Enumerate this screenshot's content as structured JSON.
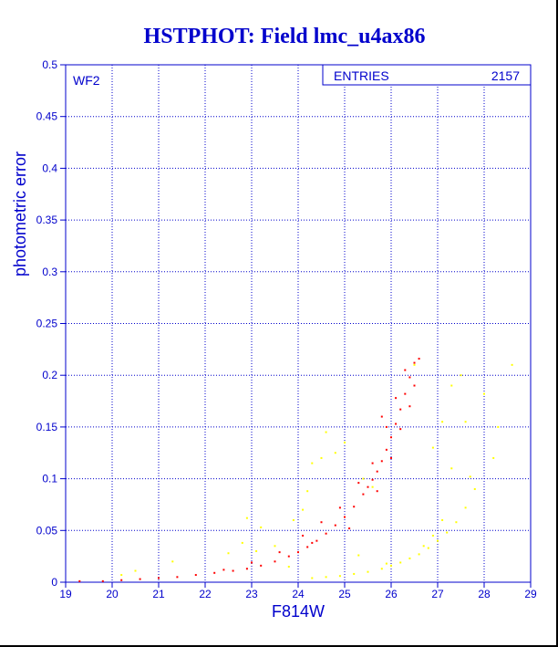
{
  "chart_data": {
    "type": "scatter",
    "title": "HSTPHOT: Field lmc_u4ax86",
    "xlabel": "F814W",
    "ylabel": "photometric error",
    "xlim": [
      19,
      29
    ],
    "ylim": [
      0,
      0.5
    ],
    "x_ticks": [
      "19",
      "20",
      "21",
      "22",
      "23",
      "24",
      "25",
      "26",
      "27",
      "28",
      "29"
    ],
    "y_ticks": [
      "0",
      "0.05",
      "0.1",
      "0.15",
      "0.2",
      "0.25",
      "0.3",
      "0.35",
      "0.4",
      "0.45",
      "0.5"
    ],
    "grid": true,
    "chip_label": "WF2",
    "stats_box": {
      "label": "ENTRIES",
      "value": "2157"
    },
    "series": [
      {
        "color": "#ff0000",
        "points": [
          [
            19.3,
            0.001
          ],
          [
            19.8,
            0.001
          ],
          [
            20.2,
            0.002
          ],
          [
            20.6,
            0.003
          ],
          [
            21.0,
            0.004
          ],
          [
            21.4,
            0.005
          ],
          [
            21.8,
            0.007
          ],
          [
            22.2,
            0.009
          ],
          [
            22.6,
            0.011
          ],
          [
            22.9,
            0.013
          ],
          [
            23.2,
            0.016
          ],
          [
            23.5,
            0.02
          ],
          [
            23.8,
            0.025
          ],
          [
            24.0,
            0.029
          ],
          [
            24.2,
            0.034
          ],
          [
            24.4,
            0.04
          ],
          [
            24.6,
            0.047
          ],
          [
            24.8,
            0.055
          ],
          [
            25.0,
            0.063
          ],
          [
            25.2,
            0.073
          ],
          [
            25.4,
            0.085
          ],
          [
            25.5,
            0.092
          ],
          [
            25.6,
            0.099
          ],
          [
            25.7,
            0.107
          ],
          [
            25.8,
            0.117
          ],
          [
            25.9,
            0.128
          ],
          [
            26.0,
            0.14
          ],
          [
            26.1,
            0.153
          ],
          [
            26.2,
            0.167
          ],
          [
            26.3,
            0.182
          ],
          [
            26.4,
            0.198
          ],
          [
            26.5,
            0.212
          ],
          [
            26.6,
            0.216
          ],
          [
            23.6,
            0.029
          ],
          [
            24.1,
            0.045
          ],
          [
            24.5,
            0.058
          ],
          [
            24.9,
            0.072
          ],
          [
            25.3,
            0.096
          ],
          [
            25.6,
            0.115
          ],
          [
            25.9,
            0.15
          ],
          [
            26.1,
            0.178
          ],
          [
            26.3,
            0.205
          ],
          [
            26.5,
            0.19
          ],
          [
            25.1,
            0.052
          ],
          [
            25.7,
            0.088
          ],
          [
            26.0,
            0.12
          ],
          [
            26.2,
            0.148
          ],
          [
            26.4,
            0.17
          ],
          [
            22.4,
            0.012
          ],
          [
            23.0,
            0.019
          ],
          [
            24.3,
            0.038
          ],
          [
            25.8,
            0.16
          ]
        ]
      },
      {
        "color": "#ffff00",
        "points": [
          [
            24.3,
            0.004
          ],
          [
            24.6,
            0.005
          ],
          [
            24.9,
            0.006
          ],
          [
            25.2,
            0.008
          ],
          [
            25.5,
            0.01
          ],
          [
            25.8,
            0.013
          ],
          [
            26.0,
            0.016
          ],
          [
            26.2,
            0.019
          ],
          [
            26.4,
            0.023
          ],
          [
            26.6,
            0.027
          ],
          [
            26.8,
            0.033
          ],
          [
            27.0,
            0.04
          ],
          [
            27.2,
            0.048
          ],
          [
            27.4,
            0.058
          ],
          [
            27.6,
            0.072
          ],
          [
            27.8,
            0.09
          ],
          [
            28.2,
            0.12
          ],
          [
            28.6,
            0.21
          ],
          [
            24.3,
            0.115
          ],
          [
            24.5,
            0.12
          ],
          [
            24.8,
            0.125
          ],
          [
            25.0,
            0.135
          ],
          [
            24.6,
            0.145
          ],
          [
            24.2,
            0.088
          ],
          [
            25.4,
            0.1
          ],
          [
            25.6,
            0.092
          ],
          [
            23.5,
            0.035
          ],
          [
            23.8,
            0.015
          ],
          [
            22.5,
            0.028
          ],
          [
            22.8,
            0.038
          ],
          [
            22.9,
            0.062
          ],
          [
            23.1,
            0.03
          ],
          [
            21.3,
            0.02
          ],
          [
            20.2,
            0.007
          ],
          [
            20.5,
            0.011
          ],
          [
            23.2,
            0.053
          ],
          [
            23.9,
            0.06
          ],
          [
            24.1,
            0.07
          ],
          [
            26.5,
            0.21
          ],
          [
            27.3,
            0.19
          ],
          [
            27.5,
            0.2
          ],
          [
            27.1,
            0.155
          ],
          [
            27.6,
            0.155
          ],
          [
            28.0,
            0.182
          ],
          [
            26.9,
            0.13
          ],
          [
            27.3,
            0.11
          ],
          [
            27.7,
            0.102
          ],
          [
            28.3,
            0.15
          ],
          [
            25.3,
            0.026
          ],
          [
            25.9,
            0.018
          ],
          [
            26.7,
            0.035
          ],
          [
            26.9,
            0.045
          ],
          [
            27.1,
            0.06
          ]
        ]
      }
    ]
  }
}
